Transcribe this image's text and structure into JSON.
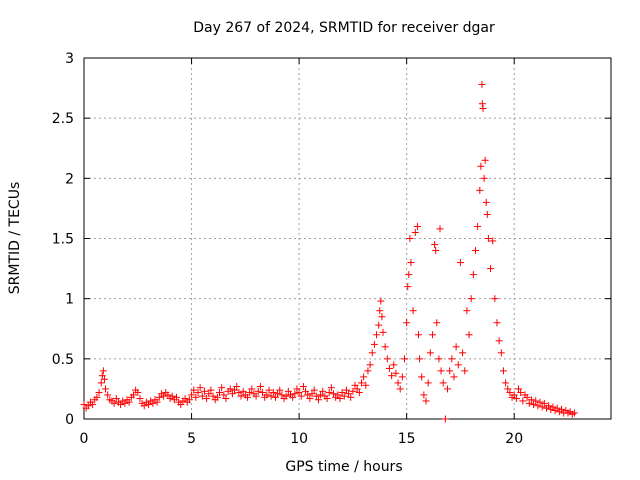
{
  "chart_data": {
    "type": "scatter",
    "title": "Day 267 of 2024, SRMTID for receiver dgar",
    "xlabel": "GPS time / hours",
    "ylabel": "SRMTID / TECUs",
    "xlim": [
      0,
      24.5
    ],
    "ylim": [
      0,
      3
    ],
    "xticks": [
      0,
      5,
      10,
      15,
      20
    ],
    "yticks": [
      0,
      0.5,
      1,
      1.5,
      2,
      2.5,
      3
    ],
    "ytick_labels": [
      "0",
      "0.5",
      "1",
      "1.5",
      "2",
      "2.5",
      "3"
    ],
    "grid": true,
    "marker": "+",
    "marker_color": "#ff0000",
    "series": [
      {
        "name": "SRMTID",
        "points": [
          [
            0.0,
            0.12
          ],
          [
            0.1,
            0.09
          ],
          [
            0.2,
            0.11
          ],
          [
            0.3,
            0.14
          ],
          [
            0.4,
            0.12
          ],
          [
            0.5,
            0.16
          ],
          [
            0.6,
            0.18
          ],
          [
            0.7,
            0.22
          ],
          [
            0.8,
            0.3
          ],
          [
            0.85,
            0.36
          ],
          [
            0.9,
            0.4
          ],
          [
            0.95,
            0.33
          ],
          [
            1.0,
            0.25
          ],
          [
            1.1,
            0.2
          ],
          [
            1.2,
            0.16
          ],
          [
            1.3,
            0.15
          ],
          [
            1.4,
            0.13
          ],
          [
            1.5,
            0.17
          ],
          [
            1.6,
            0.14
          ],
          [
            1.7,
            0.12
          ],
          [
            1.8,
            0.15
          ],
          [
            1.9,
            0.13
          ],
          [
            2.0,
            0.16
          ],
          [
            2.1,
            0.14
          ],
          [
            2.2,
            0.18
          ],
          [
            2.3,
            0.2
          ],
          [
            2.4,
            0.24
          ],
          [
            2.5,
            0.22
          ],
          [
            2.6,
            0.17
          ],
          [
            2.7,
            0.13
          ],
          [
            2.8,
            0.11
          ],
          [
            2.9,
            0.14
          ],
          [
            3.0,
            0.12
          ],
          [
            3.1,
            0.15
          ],
          [
            3.2,
            0.13
          ],
          [
            3.3,
            0.16
          ],
          [
            3.4,
            0.14
          ],
          [
            3.5,
            0.18
          ],
          [
            3.6,
            0.21
          ],
          [
            3.7,
            0.19
          ],
          [
            3.8,
            0.22
          ],
          [
            3.9,
            0.2
          ],
          [
            4.0,
            0.17
          ],
          [
            4.1,
            0.19
          ],
          [
            4.2,
            0.16
          ],
          [
            4.3,
            0.18
          ],
          [
            4.4,
            0.14
          ],
          [
            4.5,
            0.12
          ],
          [
            4.6,
            0.15
          ],
          [
            4.7,
            0.17
          ],
          [
            4.8,
            0.14
          ],
          [
            4.9,
            0.16
          ],
          [
            5.0,
            0.2
          ],
          [
            5.1,
            0.24
          ],
          [
            5.2,
            0.18
          ],
          [
            5.3,
            0.22
          ],
          [
            5.4,
            0.26
          ],
          [
            5.5,
            0.19
          ],
          [
            5.6,
            0.23
          ],
          [
            5.7,
            0.17
          ],
          [
            5.8,
            0.21
          ],
          [
            5.9,
            0.24
          ],
          [
            6.0,
            0.19
          ],
          [
            6.1,
            0.16
          ],
          [
            6.2,
            0.18
          ],
          [
            6.3,
            0.22
          ],
          [
            6.4,
            0.26
          ],
          [
            6.5,
            0.2
          ],
          [
            6.6,
            0.17
          ],
          [
            6.7,
            0.23
          ],
          [
            6.8,
            0.25
          ],
          [
            6.9,
            0.21
          ],
          [
            7.0,
            0.24
          ],
          [
            7.1,
            0.27
          ],
          [
            7.2,
            0.22
          ],
          [
            7.3,
            0.19
          ],
          [
            7.4,
            0.23
          ],
          [
            7.5,
            0.2
          ],
          [
            7.6,
            0.18
          ],
          [
            7.7,
            0.22
          ],
          [
            7.8,
            0.25
          ],
          [
            7.9,
            0.21
          ],
          [
            8.0,
            0.19
          ],
          [
            8.1,
            0.23
          ],
          [
            8.2,
            0.27
          ],
          [
            8.3,
            0.22
          ],
          [
            8.4,
            0.18
          ],
          [
            8.5,
            0.2
          ],
          [
            8.6,
            0.24
          ],
          [
            8.7,
            0.19
          ],
          [
            8.8,
            0.22
          ],
          [
            8.9,
            0.18
          ],
          [
            9.0,
            0.21
          ],
          [
            9.1,
            0.24
          ],
          [
            9.2,
            0.2
          ],
          [
            9.3,
            0.17
          ],
          [
            9.4,
            0.19
          ],
          [
            9.5,
            0.23
          ],
          [
            9.6,
            0.2
          ],
          [
            9.7,
            0.18
          ],
          [
            9.8,
            0.21
          ],
          [
            9.9,
            0.25
          ],
          [
            10.0,
            0.22
          ],
          [
            10.1,
            0.19
          ],
          [
            10.2,
            0.27
          ],
          [
            10.3,
            0.23
          ],
          [
            10.4,
            0.2
          ],
          [
            10.5,
            0.17
          ],
          [
            10.6,
            0.21
          ],
          [
            10.7,
            0.24
          ],
          [
            10.8,
            0.19
          ],
          [
            10.9,
            0.16
          ],
          [
            11.0,
            0.2
          ],
          [
            11.1,
            0.23
          ],
          [
            11.2,
            0.19
          ],
          [
            11.3,
            0.17
          ],
          [
            11.4,
            0.22
          ],
          [
            11.5,
            0.26
          ],
          [
            11.6,
            0.21
          ],
          [
            11.7,
            0.18
          ],
          [
            11.8,
            0.2
          ],
          [
            11.9,
            0.17
          ],
          [
            12.0,
            0.22
          ],
          [
            12.1,
            0.19
          ],
          [
            12.2,
            0.24
          ],
          [
            12.3,
            0.21
          ],
          [
            12.4,
            0.18
          ],
          [
            12.5,
            0.23
          ],
          [
            12.6,
            0.28
          ],
          [
            12.7,
            0.25
          ],
          [
            12.8,
            0.22
          ],
          [
            12.9,
            0.3
          ],
          [
            13.0,
            0.35
          ],
          [
            13.1,
            0.28
          ],
          [
            13.2,
            0.4
          ],
          [
            13.3,
            0.45
          ],
          [
            13.4,
            0.55
          ],
          [
            13.5,
            0.62
          ],
          [
            13.6,
            0.7
          ],
          [
            13.7,
            0.78
          ],
          [
            13.75,
            0.9
          ],
          [
            13.8,
            0.98
          ],
          [
            13.85,
            0.85
          ],
          [
            13.9,
            0.72
          ],
          [
            14.0,
            0.6
          ],
          [
            14.1,
            0.5
          ],
          [
            14.2,
            0.42
          ],
          [
            14.3,
            0.36
          ],
          [
            14.4,
            0.45
          ],
          [
            14.5,
            0.38
          ],
          [
            14.6,
            0.3
          ],
          [
            14.7,
            0.25
          ],
          [
            14.8,
            0.35
          ],
          [
            14.9,
            0.5
          ],
          [
            15.0,
            0.8
          ],
          [
            15.05,
            1.1
          ],
          [
            15.1,
            1.2
          ],
          [
            15.15,
            1.5
          ],
          [
            15.2,
            1.3
          ],
          [
            15.3,
            0.9
          ],
          [
            15.4,
            1.55
          ],
          [
            15.5,
            1.6
          ],
          [
            15.55,
            0.7
          ],
          [
            15.6,
            0.5
          ],
          [
            15.7,
            0.35
          ],
          [
            15.8,
            0.2
          ],
          [
            15.9,
            0.15
          ],
          [
            16.0,
            0.3
          ],
          [
            16.1,
            0.55
          ],
          [
            16.2,
            0.7
          ],
          [
            16.3,
            1.45
          ],
          [
            16.35,
            1.4
          ],
          [
            16.4,
            0.8
          ],
          [
            16.5,
            0.5
          ],
          [
            16.55,
            1.58
          ],
          [
            16.6,
            0.4
          ],
          [
            16.7,
            0.3
          ],
          [
            16.8,
            0.0
          ],
          [
            16.9,
            0.25
          ],
          [
            17.0,
            0.4
          ],
          [
            17.1,
            0.5
          ],
          [
            17.2,
            0.35
          ],
          [
            17.3,
            0.6
          ],
          [
            17.4,
            0.45
          ],
          [
            17.5,
            1.3
          ],
          [
            17.6,
            0.55
          ],
          [
            17.7,
            0.4
          ],
          [
            17.8,
            0.9
          ],
          [
            17.9,
            0.7
          ],
          [
            18.0,
            1.0
          ],
          [
            18.1,
            1.2
          ],
          [
            18.2,
            1.4
          ],
          [
            18.3,
            1.6
          ],
          [
            18.4,
            1.9
          ],
          [
            18.45,
            2.1
          ],
          [
            18.5,
            2.78
          ],
          [
            18.52,
            2.62
          ],
          [
            18.55,
            2.58
          ],
          [
            18.6,
            2.0
          ],
          [
            18.65,
            2.15
          ],
          [
            18.7,
            1.8
          ],
          [
            18.75,
            1.7
          ],
          [
            18.8,
            1.5
          ],
          [
            18.9,
            1.25
          ],
          [
            19.0,
            1.48
          ],
          [
            19.1,
            1.0
          ],
          [
            19.2,
            0.8
          ],
          [
            19.3,
            0.65
          ],
          [
            19.4,
            0.55
          ],
          [
            19.5,
            0.4
          ],
          [
            19.6,
            0.3
          ],
          [
            19.7,
            0.25
          ],
          [
            19.8,
            0.22
          ],
          [
            19.9,
            0.18
          ],
          [
            20.0,
            0.2
          ],
          [
            20.1,
            0.17
          ],
          [
            20.2,
            0.25
          ],
          [
            20.3,
            0.22
          ],
          [
            20.4,
            0.15
          ],
          [
            20.5,
            0.2
          ],
          [
            20.6,
            0.18
          ],
          [
            20.7,
            0.13
          ],
          [
            20.8,
            0.16
          ],
          [
            20.9,
            0.12
          ],
          [
            21.0,
            0.15
          ],
          [
            21.1,
            0.11
          ],
          [
            21.2,
            0.14
          ],
          [
            21.3,
            0.1
          ],
          [
            21.4,
            0.13
          ],
          [
            21.5,
            0.09
          ],
          [
            21.6,
            0.11
          ],
          [
            21.7,
            0.08
          ],
          [
            21.8,
            0.1
          ],
          [
            21.9,
            0.07
          ],
          [
            22.0,
            0.09
          ],
          [
            22.1,
            0.06
          ],
          [
            22.2,
            0.08
          ],
          [
            22.3,
            0.05
          ],
          [
            22.4,
            0.07
          ],
          [
            22.5,
            0.05
          ],
          [
            22.6,
            0.06
          ],
          [
            22.7,
            0.04
          ],
          [
            22.8,
            0.05
          ]
        ]
      }
    ]
  }
}
